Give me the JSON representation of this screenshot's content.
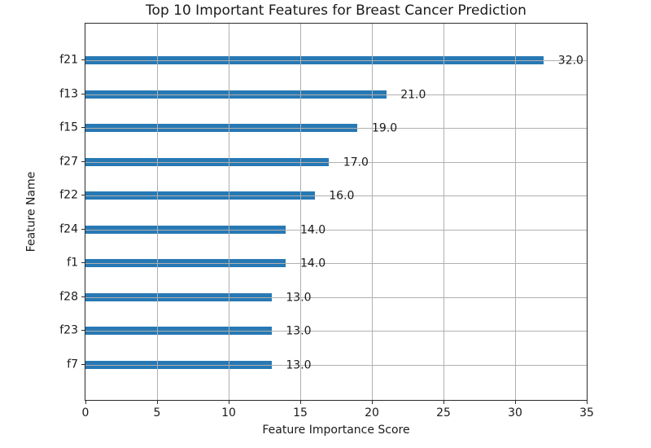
{
  "chart_data": {
    "type": "bar",
    "orientation": "horizontal",
    "title": "Top 10 Important Features for Breast Cancer Prediction",
    "xlabel": "Feature Importance Score",
    "ylabel": "Feature Name",
    "categories": [
      "f21",
      "f13",
      "f15",
      "f27",
      "f22",
      "f24",
      "f1",
      "f28",
      "f23",
      "f7"
    ],
    "values": [
      32.0,
      21.0,
      19.0,
      17.0,
      16.0,
      14.0,
      14.0,
      13.0,
      13.0,
      13.0
    ],
    "value_labels": [
      "32.0",
      "21.0",
      "19.0",
      "17.0",
      "16.0",
      "14.0",
      "14.0",
      "13.0",
      "13.0",
      "13.0"
    ],
    "xlim": [
      0,
      35
    ],
    "xticks": [
      0,
      5,
      10,
      15,
      20,
      25,
      30,
      35
    ],
    "xtick_labels": [
      "0",
      "5",
      "10",
      "15",
      "20",
      "25",
      "30",
      "35"
    ],
    "grid": true,
    "grid_above_bars": true,
    "legend_position": "none",
    "colors": {
      "bar": "#2779b4",
      "grid": "#b0b0b0",
      "spine": "#2b2b2b",
      "text": "#1a1a1a",
      "background": "#ffffff"
    }
  }
}
